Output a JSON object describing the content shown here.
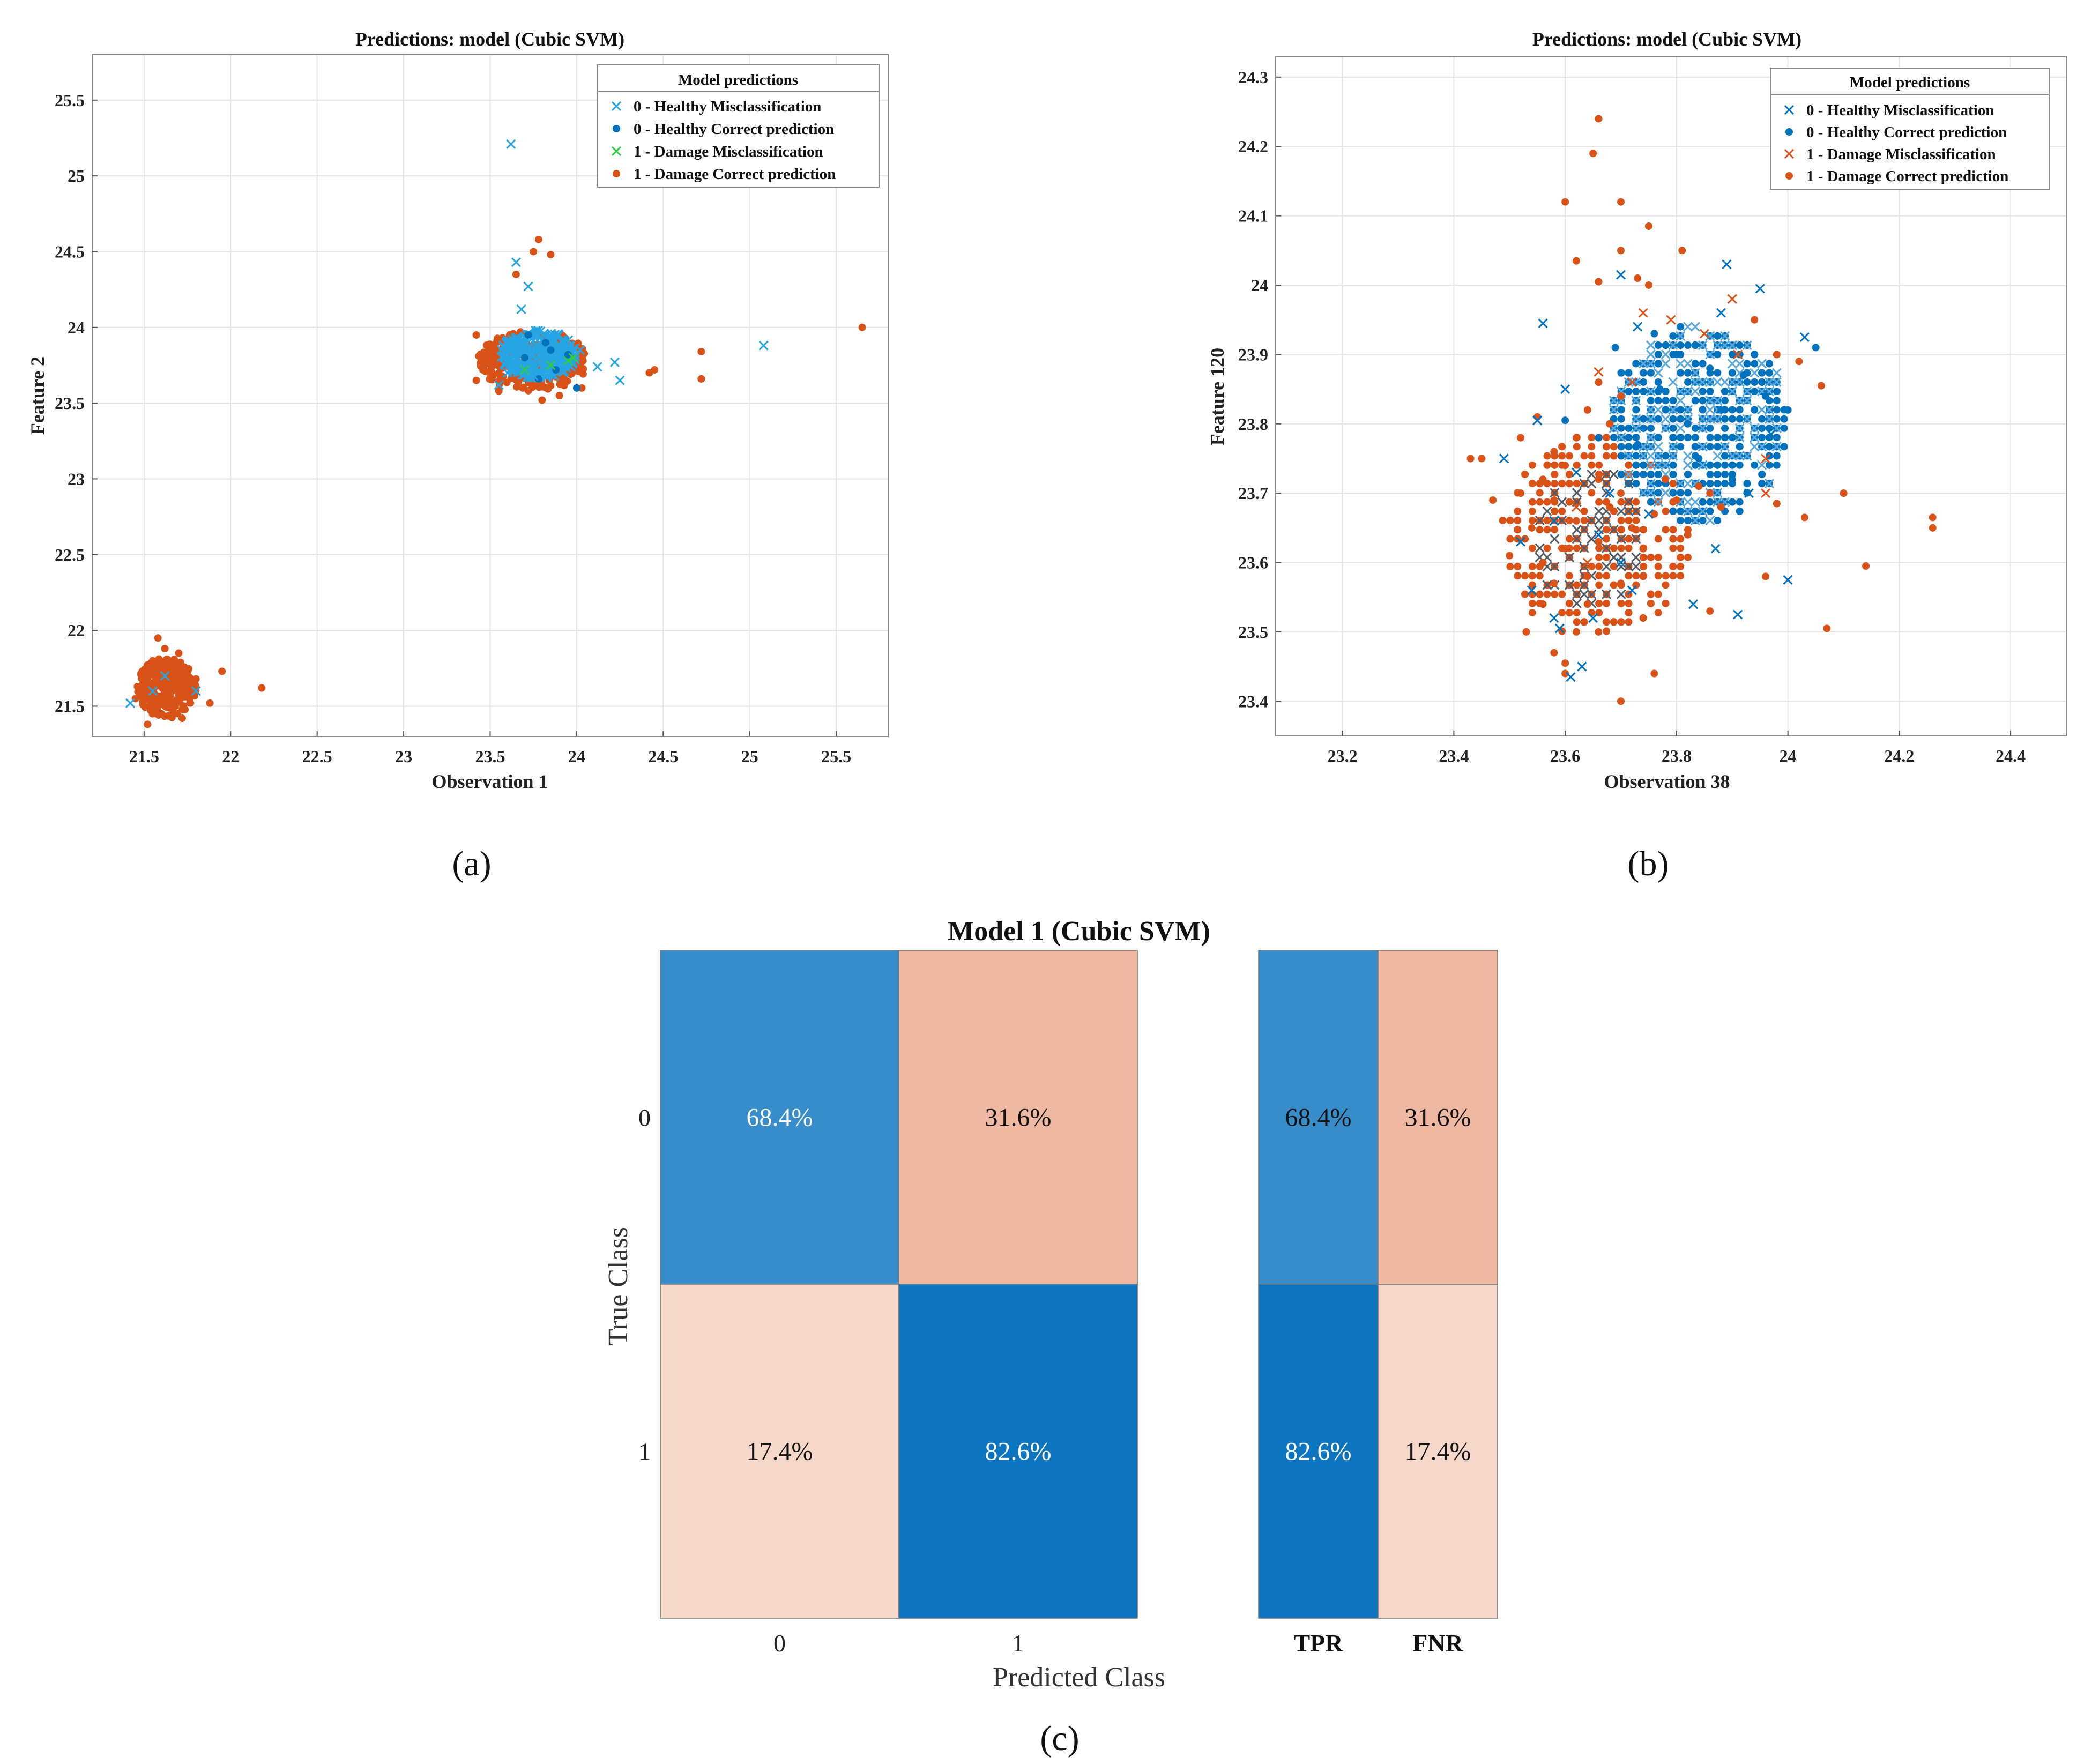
{
  "chart_data": [
    {
      "id": "a",
      "type": "scatter",
      "title": "Predictions: model (Cubic SVM)",
      "xlabel": "Observation 1",
      "ylabel": "Feature 2",
      "xlim": [
        21.2,
        25.8
      ],
      "ylim": [
        21.3,
        25.8
      ],
      "xticks": [
        21.5,
        22,
        22.5,
        23,
        23.5,
        24,
        24.5,
        25,
        25.5
      ],
      "yticks": [
        21.5,
        22,
        22.5,
        23,
        23.5,
        24,
        24.5,
        25,
        25.5
      ],
      "grid": true,
      "legend_title": "Model predictions",
      "legend_position": "top-right",
      "series": [
        {
          "name": "0 - Healthy Misclassification",
          "marker": "x",
          "color": "#26a5e4",
          "points": [
            [
              23.62,
              25.21
            ],
            [
              23.65,
              24.43
            ],
            [
              23.72,
              24.27
            ],
            [
              23.68,
              24.12
            ],
            [
              24.12,
              23.74
            ],
            [
              24.22,
              23.77
            ],
            [
              24.25,
              23.65
            ],
            [
              25.08,
              23.88
            ],
            [
              23.55,
              23.62
            ],
            [
              23.6,
              23.7
            ],
            [
              21.42,
              21.52
            ],
            [
              21.55,
              21.6
            ],
            [
              21.62,
              21.7
            ],
            [
              21.8,
              21.6
            ],
            [
              23.82,
              23.95
            ],
            [
              23.9,
              23.78
            ],
            [
              23.75,
              23.68
            ],
            [
              24.02,
              23.85
            ]
          ]
        },
        {
          "name": "0 - Healthy Correct prediction",
          "marker": "o",
          "color": "#0072bd",
          "points": [
            [
              23.7,
              23.8
            ],
            [
              23.82,
              23.9
            ],
            [
              23.88,
              23.72
            ],
            [
              23.78,
              23.66
            ],
            [
              23.95,
              23.82
            ],
            [
              24.0,
              23.6
            ],
            [
              23.72,
              23.95
            ],
            [
              23.85,
              23.85
            ]
          ]
        },
        {
          "name": "1 - Damage Misclassification",
          "marker": "x",
          "color": "#2ecc40",
          "points": [
            [
              23.95,
              23.78
            ],
            [
              23.98,
              23.8
            ],
            [
              23.7,
              23.72
            ],
            [
              23.85,
              23.75
            ]
          ]
        },
        {
          "name": "1 - Damage Correct prediction",
          "marker": "o",
          "color": "#d95319",
          "points": [
            [
              23.78,
              24.58
            ],
            [
              23.75,
              24.5
            ],
            [
              23.65,
              24.35
            ],
            [
              23.85,
              24.48
            ],
            [
              24.72,
              23.84
            ],
            [
              24.45,
              23.72
            ],
            [
              24.42,
              23.7
            ],
            [
              24.72,
              23.66
            ],
            [
              25.65,
              24.0
            ],
            [
              23.42,
              23.95
            ],
            [
              23.42,
              23.65
            ],
            [
              23.48,
              23.78
            ],
            [
              23.55,
              23.58
            ],
            [
              23.8,
              23.52
            ],
            [
              23.9,
              23.55
            ],
            [
              24.03,
              23.6
            ],
            [
              23.52,
              23.88
            ],
            [
              22.18,
              21.62
            ],
            [
              21.95,
              21.73
            ],
            [
              21.88,
              21.52
            ],
            [
              21.58,
              21.95
            ],
            [
              21.52,
              21.38
            ],
            [
              21.6,
              21.45
            ],
            [
              21.7,
              21.85
            ],
            [
              21.5,
              21.65
            ],
            [
              21.65,
              21.58
            ],
            [
              21.75,
              21.7
            ],
            [
              21.45,
              21.55
            ],
            [
              21.55,
              21.8
            ],
            [
              21.68,
              21.5
            ],
            [
              21.62,
              21.88
            ],
            [
              21.8,
              21.68
            ],
            [
              21.57,
              21.72
            ],
            [
              21.72,
              21.42
            ],
            [
              21.48,
              21.62
            ]
          ]
        }
      ]
    },
    {
      "id": "b",
      "type": "scatter",
      "title": "Predictions: model  (Cubic SVM)",
      "xlabel": "Observation 38",
      "ylabel": "Feature 120",
      "xlim": [
        23.08,
        24.5
      ],
      "ylim": [
        23.35,
        24.33
      ],
      "xticks": [
        23.2,
        23.4,
        23.6,
        23.8,
        24,
        24.2,
        24.4
      ],
      "yticks": [
        23.4,
        23.5,
        23.6,
        23.7,
        23.8,
        23.9,
        24,
        24.1,
        24.2,
        24.3
      ],
      "grid": true,
      "legend_title": "Model predictions",
      "legend_position": "top-right",
      "series": [
        {
          "name": "0 - Healthy Misclassification",
          "marker": "x",
          "color": "#0072bd",
          "points": [
            [
              23.56,
              23.945
            ],
            [
              23.7,
              24.015
            ],
            [
              23.89,
              24.03
            ],
            [
              23.95,
              23.995
            ],
            [
              24.03,
              23.925
            ],
            [
              23.97,
              23.785
            ],
            [
              23.49,
              23.75
            ],
            [
              23.52,
              23.63
            ],
            [
              23.54,
              23.56
            ],
            [
              23.58,
              23.52
            ],
            [
              23.59,
              23.505
            ],
            [
              23.61,
              23.435
            ],
            [
              23.63,
              23.45
            ],
            [
              23.65,
              23.52
            ],
            [
              23.72,
              23.56
            ],
            [
              23.83,
              23.54
            ],
            [
              23.91,
              23.525
            ],
            [
              24.0,
              23.575
            ],
            [
              23.55,
              23.805
            ],
            [
              23.6,
              23.85
            ],
            [
              23.62,
              23.73
            ],
            [
              23.68,
              23.7
            ],
            [
              23.75,
              23.67
            ],
            [
              23.87,
              23.62
            ],
            [
              23.93,
              23.7
            ],
            [
              23.58,
              23.66
            ],
            [
              23.66,
              23.64
            ],
            [
              23.7,
              23.6
            ],
            [
              23.73,
              23.94
            ],
            [
              23.88,
              23.96
            ]
          ]
        },
        {
          "name": "0 - Healthy Correct prediction",
          "marker": "o",
          "color": "#0072bd",
          "points": [
            [
              23.6,
              23.805
            ],
            [
              23.66,
              23.78
            ],
            [
              23.69,
              23.91
            ],
            [
              23.73,
              23.77
            ],
            [
              23.76,
              23.93
            ],
            [
              23.77,
              23.85
            ],
            [
              23.8,
              23.9
            ],
            [
              23.82,
              23.8
            ],
            [
              23.84,
              23.75
            ],
            [
              23.86,
              23.88
            ],
            [
              23.88,
              23.82
            ],
            [
              23.9,
              23.72
            ],
            [
              23.92,
              23.87
            ],
            [
              23.94,
              23.9
            ],
            [
              23.96,
              23.84
            ],
            [
              24.05,
              23.91
            ],
            [
              24.0,
              23.82
            ]
          ]
        },
        {
          "name": "1 - Damage Misclassification",
          "marker": "x",
          "color": "#d95319",
          "points": [
            [
              23.66,
              23.875
            ],
            [
              23.72,
              23.86
            ],
            [
              23.74,
              23.96
            ],
            [
              23.79,
              23.95
            ],
            [
              23.85,
              23.93
            ],
            [
              23.91,
              23.9
            ],
            [
              23.96,
              23.75
            ],
            [
              23.96,
              23.7
            ],
            [
              23.62,
              23.68
            ],
            [
              23.64,
              23.6
            ],
            [
              23.9,
              23.98
            ]
          ]
        },
        {
          "name": "1 - Damage Correct prediction",
          "marker": "o",
          "color": "#d95319",
          "points": [
            [
              23.66,
              24.24
            ],
            [
              23.65,
              24.19
            ],
            [
              23.6,
              24.12
            ],
            [
              23.7,
              24.12
            ],
            [
              23.75,
              24.085
            ],
            [
              23.62,
              24.035
            ],
            [
              23.7,
              24.05
            ],
            [
              23.73,
              24.01
            ],
            [
              23.75,
              24.0
            ],
            [
              23.66,
              24.005
            ],
            [
              23.81,
              24.05
            ],
            [
              23.94,
              23.95
            ],
            [
              23.98,
              23.9
            ],
            [
              24.02,
              23.89
            ],
            [
              24.06,
              23.855
            ],
            [
              23.45,
              23.75
            ],
            [
              23.43,
              23.75
            ],
            [
              23.47,
              23.69
            ],
            [
              23.5,
              23.61
            ],
            [
              23.53,
              23.5
            ],
            [
              23.58,
              23.47
            ],
            [
              23.6,
              23.455
            ],
            [
              23.6,
              23.44
            ],
            [
              23.62,
              23.5
            ],
            [
              23.66,
              23.5
            ],
            [
              23.7,
              23.4
            ],
            [
              23.74,
              23.52
            ],
            [
              23.76,
              23.44
            ],
            [
              23.86,
              23.53
            ],
            [
              23.96,
              23.58
            ],
            [
              24.03,
              23.665
            ],
            [
              24.07,
              23.505
            ],
            [
              24.1,
              23.7
            ],
            [
              24.14,
              23.595
            ],
            [
              24.26,
              23.665
            ],
            [
              24.26,
              23.65
            ],
            [
              23.98,
              23.685
            ],
            [
              23.55,
              23.81
            ],
            [
              23.52,
              23.78
            ],
            [
              23.58,
              23.76
            ],
            [
              23.56,
              23.72
            ],
            [
              23.52,
              23.7
            ],
            [
              23.54,
              23.65
            ],
            [
              23.56,
              23.6
            ],
            [
              23.58,
              23.57
            ],
            [
              23.6,
              23.62
            ],
            [
              23.62,
              23.66
            ],
            [
              23.64,
              23.58
            ],
            [
              23.66,
              23.63
            ],
            [
              23.68,
              23.68
            ],
            [
              23.7,
              23.7
            ],
            [
              23.72,
              23.65
            ],
            [
              23.74,
              23.62
            ],
            [
              23.76,
              23.67
            ],
            [
              23.78,
              23.72
            ],
            [
              23.8,
              23.69
            ],
            [
              23.82,
              23.64
            ],
            [
              23.84,
              23.71
            ],
            [
              23.86,
              23.7
            ],
            [
              23.88,
              23.68
            ],
            [
              23.62,
              23.78
            ],
            [
              23.64,
              23.82
            ],
            [
              23.66,
              23.86
            ],
            [
              23.68,
              23.8
            ],
            [
              23.7,
              23.84
            ],
            [
              23.6,
              23.74
            ],
            [
              23.56,
              23.54
            ],
            [
              23.64,
              23.54
            ],
            [
              23.7,
              23.57
            ],
            [
              23.74,
              23.58
            ],
            [
              23.66,
              23.72
            ],
            [
              23.58,
              23.69
            ]
          ]
        }
      ]
    },
    {
      "id": "c",
      "type": "heatmap",
      "title": "Model 1 (Cubic SVM)",
      "xlabel": "Predicted Class",
      "ylabel": "True Class",
      "row_labels": [
        "0",
        "1"
      ],
      "col_labels": [
        "0",
        "1"
      ],
      "values": [
        [
          68.4,
          31.6
        ],
        [
          17.4,
          82.6
        ]
      ],
      "cell_text": [
        [
          "68.4%",
          "31.6%"
        ],
        [
          "17.4%",
          "82.6%"
        ]
      ],
      "summary_col_labels": [
        "TPR",
        "FNR"
      ],
      "summary_values": [
        [
          68.4,
          31.6
        ],
        [
          82.6,
          17.4
        ]
      ],
      "summary_text": [
        [
          "68.4%",
          "31.6%"
        ],
        [
          "82.6%",
          "17.4%"
        ]
      ]
    }
  ],
  "panel_labels": {
    "a": "(a)",
    "b": "(b)",
    "c": "(c)"
  }
}
